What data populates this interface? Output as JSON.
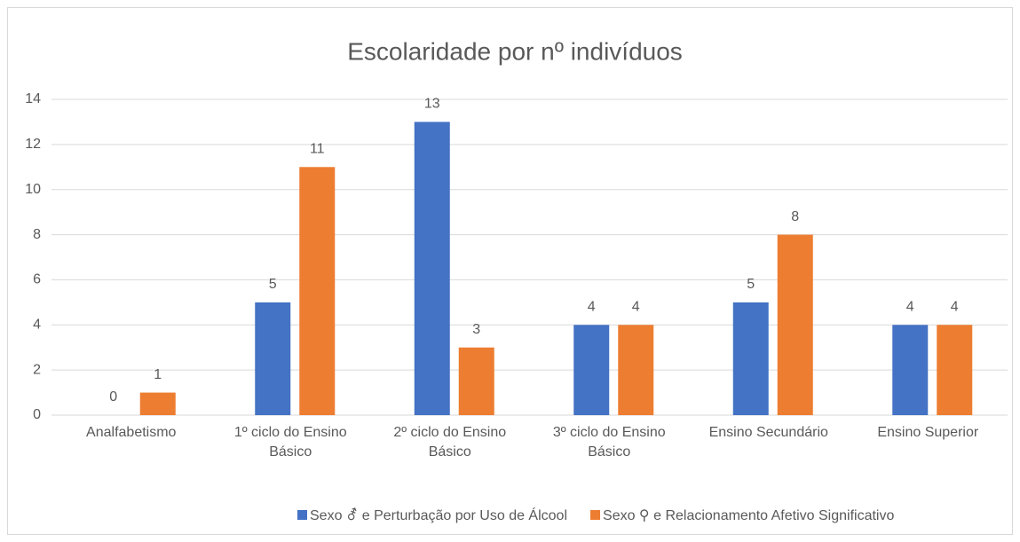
{
  "chart_data": {
    "type": "bar",
    "title": "Escolaridade por nº indivíduos",
    "categories": [
      "Analfabetismo",
      "1º ciclo do Ensino Básico",
      "2º ciclo do Ensino Básico",
      "3º ciclo do Ensino Básico",
      "Ensino Secundário",
      "Ensino Superior"
    ],
    "series": [
      {
        "name": "Sexo ⚦ e Perturbação por Uso de Álcool",
        "color": "#4472c4",
        "values": [
          0,
          5,
          13,
          4,
          5,
          4
        ]
      },
      {
        "name": "Sexo ⚲ e Relacionamento Afetivo Significativo",
        "color": "#ed7d31",
        "values": [
          1,
          11,
          3,
          4,
          8,
          4
        ]
      }
    ],
    "ylim": [
      0,
      14
    ],
    "yticks": [
      0,
      2,
      4,
      6,
      8,
      10,
      12,
      14
    ],
    "grid": true,
    "legend": "bottom"
  }
}
